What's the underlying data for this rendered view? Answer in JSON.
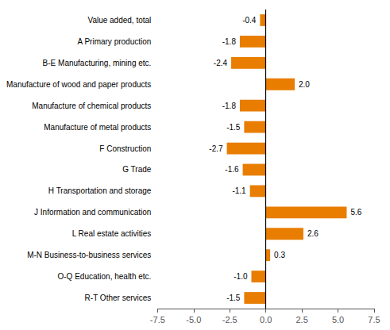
{
  "chart_data": {
    "type": "bar",
    "orientation": "horizontal",
    "categories": [
      "Value added, total",
      "A Primary production",
      "B-E Manufacturing, mining etc.",
      "Manufacture of wood and paper products",
      "Manufacture of chemical products",
      "Manufacture of metal products",
      "F Construction",
      "G Trade",
      "H Transportation and storage",
      "J Information and communication",
      "L Real estate activities",
      "M-N Business-to-business services",
      "O-Q Education, health etc.",
      "R-T Other services"
    ],
    "values": [
      -0.4,
      -1.8,
      -2.4,
      2.0,
      -1.8,
      -1.5,
      -2.7,
      -1.6,
      -1.1,
      5.6,
      2.6,
      0.3,
      -1.0,
      -1.5
    ],
    "value_labels": [
      "-0.4",
      "-1.8",
      "-2.4",
      "2.0",
      "-1.8",
      "-1.5",
      "-2.7",
      "-1.6",
      "-1.1",
      "5.6",
      "2.6",
      "0.3",
      "-1.0",
      "-1.5"
    ],
    "color": "#E87D00",
    "xlim": [
      -7.5,
      7.5
    ],
    "xticks": [
      -7.5,
      {
        "value": -5.0,
        "label": "-5.0"
      },
      -2.5,
      {
        "value": 0.0,
        "label": "0.0"
      },
      2.5,
      {
        "value": 5.0,
        "label": "5.0"
      },
      7.5
    ],
    "grid": false,
    "data_labels": true
  }
}
